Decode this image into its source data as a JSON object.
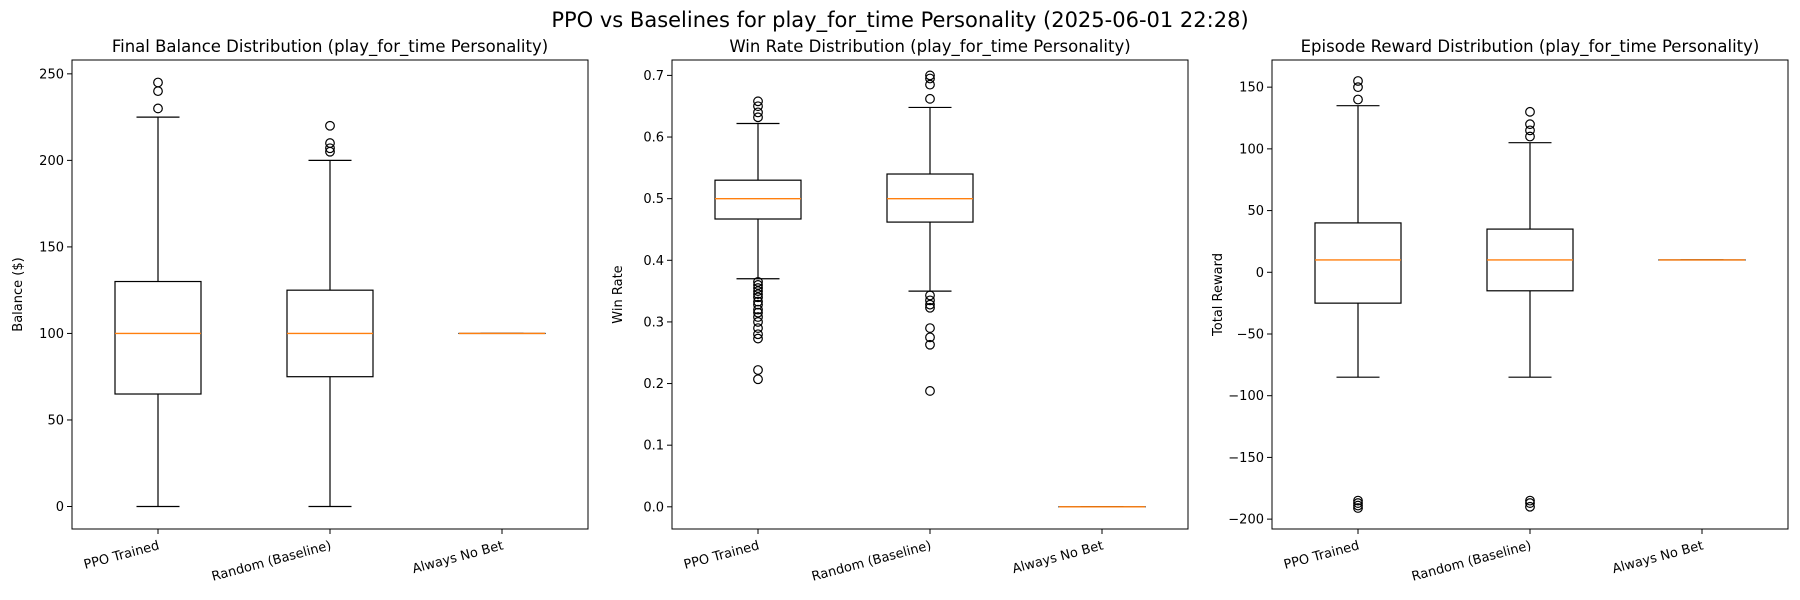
{
  "figure_title": "PPO vs Baselines for play_for_time Personality (2025-06-01 22:28)",
  "colors": {
    "median": "#ff7f0e",
    "box": "#000000",
    "background": "#ffffff"
  },
  "chart_data": [
    {
      "type": "box",
      "title": "Final Balance Distribution (play_for_time Personality)",
      "xlabel": "",
      "ylabel": "Balance ($)",
      "categories": [
        "PPO Trained",
        "Random (Baseline)",
        "Always No Bet"
      ],
      "ylim": [
        -13,
        258
      ],
      "yticks": [
        0,
        50,
        100,
        150,
        200,
        250
      ],
      "yticklabels": [
        "0",
        "50",
        "100",
        "150",
        "200",
        "250"
      ],
      "grid": false,
      "boxes": [
        {
          "category": "PPO Trained",
          "whislo": 0,
          "q1": 65,
          "med": 100,
          "q3": 130,
          "whishi": 225,
          "fliers": [
            230,
            240,
            245
          ]
        },
        {
          "category": "Random (Baseline)",
          "whislo": 0,
          "q1": 75,
          "med": 100,
          "q3": 125,
          "whishi": 200,
          "fliers": [
            205,
            207,
            210,
            220
          ]
        },
        {
          "category": "Always No Bet",
          "whislo": 100,
          "q1": 100,
          "med": 100,
          "q3": 100,
          "whishi": 100,
          "fliers": []
        }
      ]
    },
    {
      "type": "box",
      "title": "Win Rate Distribution (play_for_time Personality)",
      "xlabel": "",
      "ylabel": "Win Rate",
      "categories": [
        "PPO Trained",
        "Random (Baseline)",
        "Always No Bet"
      ],
      "ylim": [
        -0.036,
        0.725
      ],
      "yticks": [
        0.0,
        0.1,
        0.2,
        0.3,
        0.4,
        0.5,
        0.6,
        0.7
      ],
      "yticklabels": [
        "0.0",
        "0.1",
        "0.2",
        "0.3",
        "0.4",
        "0.5",
        "0.6",
        "0.7"
      ],
      "grid": false,
      "boxes": [
        {
          "category": "PPO Trained",
          "whislo": 0.37,
          "q1": 0.467,
          "med": 0.5,
          "q3": 0.53,
          "whishi": 0.622,
          "fliers": [
            0.207,
            0.222,
            0.273,
            0.28,
            0.29,
            0.3,
            0.308,
            0.315,
            0.32,
            0.328,
            0.333,
            0.34,
            0.345,
            0.35,
            0.355,
            0.36,
            0.365,
            0.632,
            0.64,
            0.65,
            0.658
          ]
        },
        {
          "category": "Random (Baseline)",
          "whislo": 0.35,
          "q1": 0.462,
          "med": 0.5,
          "q3": 0.54,
          "whishi": 0.648,
          "fliers": [
            0.188,
            0.263,
            0.275,
            0.29,
            0.323,
            0.328,
            0.335,
            0.343,
            0.662,
            0.685,
            0.695,
            0.7
          ]
        },
        {
          "category": "Always No Bet",
          "whislo": 0.0,
          "q1": 0.0,
          "med": 0.0,
          "q3": 0.0,
          "whishi": 0.0,
          "fliers": []
        }
      ]
    },
    {
      "type": "box",
      "title": "Episode Reward Distribution (play_for_time Personality)",
      "xlabel": "",
      "ylabel": "Total Reward",
      "categories": [
        "PPO Trained",
        "Random (Baseline)",
        "Always No Bet"
      ],
      "ylim": [
        -208,
        172
      ],
      "yticks": [
        -200,
        -150,
        -100,
        -50,
        0,
        50,
        100,
        150
      ],
      "yticklabels": [
        "−200",
        "−150",
        "−100",
        "−50",
        "0",
        "50",
        "100",
        "150"
      ],
      "grid": false,
      "boxes": [
        {
          "category": "PPO Trained",
          "whislo": -85,
          "q1": -25,
          "med": 10,
          "q3": 40,
          "whishi": 135,
          "fliers": [
            140,
            150,
            155,
            -185,
            -187,
            -189,
            -191
          ]
        },
        {
          "category": "Random (Baseline)",
          "whislo": -85,
          "q1": -15,
          "med": 10,
          "q3": 35,
          "whishi": 105,
          "fliers": [
            110,
            115,
            120,
            130,
            -185,
            -187,
            -190
          ]
        },
        {
          "category": "Always No Bet",
          "whislo": 10,
          "q1": 10,
          "med": 10,
          "q3": 10,
          "whishi": 10,
          "fliers": []
        }
      ]
    }
  ]
}
